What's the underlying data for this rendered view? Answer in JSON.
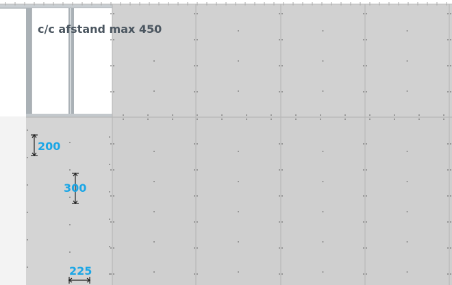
{
  "annotation": {
    "text": "c/c afstand max 450"
  },
  "dimensions": [
    {
      "label": "200"
    },
    {
      "label": "300"
    },
    {
      "label": "225"
    }
  ],
  "colors": {
    "board": "#d1d1d1",
    "board_light": "#d8d8d8",
    "board_edge": "#ffffff",
    "joint": "#bdbdbd",
    "stud_face": "#e2e6e9",
    "stud_flange": "#aab1b6",
    "background": "#ffffff",
    "annotation_text": "#4b5660",
    "dimension_text": "#1aa6e6",
    "screw": "#6e6e6e"
  }
}
